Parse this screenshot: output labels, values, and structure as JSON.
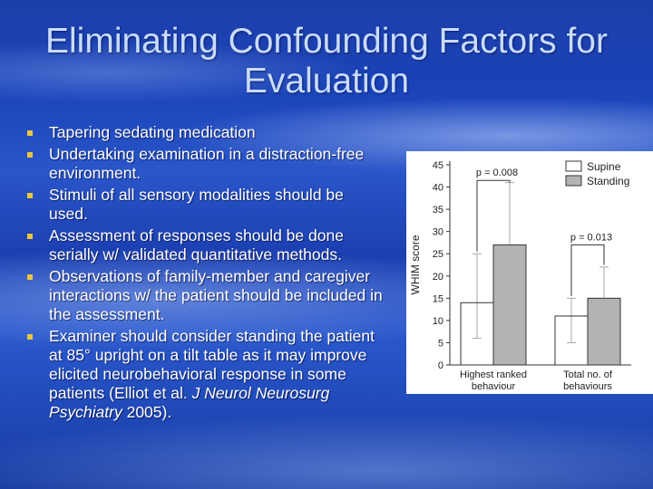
{
  "slide": {
    "title": "Eliminating Confounding Factors for Evaluation",
    "bullets": [
      "Tapering sedating medication",
      "Undertaking examination in a distraction-free environment.",
      "Stimuli of all sensory modalities should be used.",
      "Assessment of responses should be done serially w/ validated quantitative methods.",
      "Observations of family-member and caregiver interactions w/ the patient should be included in the assessment."
    ],
    "last_bullet": {
      "text": "Examiner should consider standing the patient at 85° upright on a tilt table as it may improve elicited neurobehavioral response in some patients (Elliot et al. ",
      "journal": "J Neurol Neurosurg Psychiatry",
      "year": " 2005)."
    },
    "bullet_color": "#e8c640"
  },
  "chart_data": {
    "type": "bar",
    "ylabel": "WHIM score",
    "ylim": [
      0,
      45
    ],
    "yticks": [
      "0",
      "5",
      "10",
      "15",
      "20",
      "25",
      "30",
      "35",
      "40",
      "45"
    ],
    "categories": [
      "Highest ranked behaviour",
      "Total no. of behaviours"
    ],
    "category_lines": [
      [
        "Highest ranked",
        "behaviour"
      ],
      [
        "Total no. of",
        "behaviours"
      ]
    ],
    "series": [
      {
        "name": "Supine",
        "values": [
          14,
          11
        ],
        "error_low": [
          6,
          5
        ],
        "error_high": [
          25,
          15
        ],
        "color": "#ffffff"
      },
      {
        "name": "Standing",
        "values": [
          27,
          15
        ],
        "error_low": [
          27,
          10
        ],
        "error_high": [
          41,
          22
        ],
        "color": "#b3b3b3"
      }
    ],
    "annotations": [
      "p = 0.008",
      "p = 0.013"
    ],
    "legend": "top-right",
    "grid": false
  }
}
